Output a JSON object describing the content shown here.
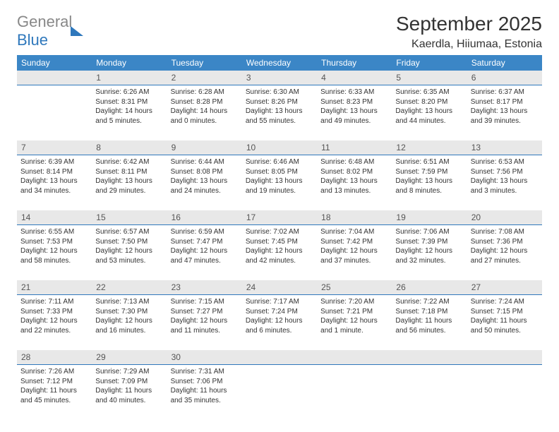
{
  "logo": {
    "word1": "General",
    "word2": "Blue"
  },
  "title": "September 2025",
  "location": "Kaerdla, Hiiumaa, Estonia",
  "colors": {
    "header_bg": "#3b86c6",
    "header_text": "#ffffff",
    "daynum_bg": "#e8e8e8",
    "border": "#2f78bc",
    "text": "#333333",
    "logo_gray": "#888888",
    "logo_blue": "#2f78bc"
  },
  "daysOfWeek": [
    "Sunday",
    "Monday",
    "Tuesday",
    "Wednesday",
    "Thursday",
    "Friday",
    "Saturday"
  ],
  "weeks": [
    {
      "nums": [
        "",
        "1",
        "2",
        "3",
        "4",
        "5",
        "6"
      ],
      "cells": [
        {
          "sunrise": "",
          "sunset": "",
          "daylight1": "",
          "daylight2": ""
        },
        {
          "sunrise": "Sunrise: 6:26 AM",
          "sunset": "Sunset: 8:31 PM",
          "daylight1": "Daylight: 14 hours",
          "daylight2": "and 5 minutes."
        },
        {
          "sunrise": "Sunrise: 6:28 AM",
          "sunset": "Sunset: 8:28 PM",
          "daylight1": "Daylight: 14 hours",
          "daylight2": "and 0 minutes."
        },
        {
          "sunrise": "Sunrise: 6:30 AM",
          "sunset": "Sunset: 8:26 PM",
          "daylight1": "Daylight: 13 hours",
          "daylight2": "and 55 minutes."
        },
        {
          "sunrise": "Sunrise: 6:33 AM",
          "sunset": "Sunset: 8:23 PM",
          "daylight1": "Daylight: 13 hours",
          "daylight2": "and 49 minutes."
        },
        {
          "sunrise": "Sunrise: 6:35 AM",
          "sunset": "Sunset: 8:20 PM",
          "daylight1": "Daylight: 13 hours",
          "daylight2": "and 44 minutes."
        },
        {
          "sunrise": "Sunrise: 6:37 AM",
          "sunset": "Sunset: 8:17 PM",
          "daylight1": "Daylight: 13 hours",
          "daylight2": "and 39 minutes."
        }
      ]
    },
    {
      "nums": [
        "7",
        "8",
        "9",
        "10",
        "11",
        "12",
        "13"
      ],
      "cells": [
        {
          "sunrise": "Sunrise: 6:39 AM",
          "sunset": "Sunset: 8:14 PM",
          "daylight1": "Daylight: 13 hours",
          "daylight2": "and 34 minutes."
        },
        {
          "sunrise": "Sunrise: 6:42 AM",
          "sunset": "Sunset: 8:11 PM",
          "daylight1": "Daylight: 13 hours",
          "daylight2": "and 29 minutes."
        },
        {
          "sunrise": "Sunrise: 6:44 AM",
          "sunset": "Sunset: 8:08 PM",
          "daylight1": "Daylight: 13 hours",
          "daylight2": "and 24 minutes."
        },
        {
          "sunrise": "Sunrise: 6:46 AM",
          "sunset": "Sunset: 8:05 PM",
          "daylight1": "Daylight: 13 hours",
          "daylight2": "and 19 minutes."
        },
        {
          "sunrise": "Sunrise: 6:48 AM",
          "sunset": "Sunset: 8:02 PM",
          "daylight1": "Daylight: 13 hours",
          "daylight2": "and 13 minutes."
        },
        {
          "sunrise": "Sunrise: 6:51 AM",
          "sunset": "Sunset: 7:59 PM",
          "daylight1": "Daylight: 13 hours",
          "daylight2": "and 8 minutes."
        },
        {
          "sunrise": "Sunrise: 6:53 AM",
          "sunset": "Sunset: 7:56 PM",
          "daylight1": "Daylight: 13 hours",
          "daylight2": "and 3 minutes."
        }
      ]
    },
    {
      "nums": [
        "14",
        "15",
        "16",
        "17",
        "18",
        "19",
        "20"
      ],
      "cells": [
        {
          "sunrise": "Sunrise: 6:55 AM",
          "sunset": "Sunset: 7:53 PM",
          "daylight1": "Daylight: 12 hours",
          "daylight2": "and 58 minutes."
        },
        {
          "sunrise": "Sunrise: 6:57 AM",
          "sunset": "Sunset: 7:50 PM",
          "daylight1": "Daylight: 12 hours",
          "daylight2": "and 53 minutes."
        },
        {
          "sunrise": "Sunrise: 6:59 AM",
          "sunset": "Sunset: 7:47 PM",
          "daylight1": "Daylight: 12 hours",
          "daylight2": "and 47 minutes."
        },
        {
          "sunrise": "Sunrise: 7:02 AM",
          "sunset": "Sunset: 7:45 PM",
          "daylight1": "Daylight: 12 hours",
          "daylight2": "and 42 minutes."
        },
        {
          "sunrise": "Sunrise: 7:04 AM",
          "sunset": "Sunset: 7:42 PM",
          "daylight1": "Daylight: 12 hours",
          "daylight2": "and 37 minutes."
        },
        {
          "sunrise": "Sunrise: 7:06 AM",
          "sunset": "Sunset: 7:39 PM",
          "daylight1": "Daylight: 12 hours",
          "daylight2": "and 32 minutes."
        },
        {
          "sunrise": "Sunrise: 7:08 AM",
          "sunset": "Sunset: 7:36 PM",
          "daylight1": "Daylight: 12 hours",
          "daylight2": "and 27 minutes."
        }
      ]
    },
    {
      "nums": [
        "21",
        "22",
        "23",
        "24",
        "25",
        "26",
        "27"
      ],
      "cells": [
        {
          "sunrise": "Sunrise: 7:11 AM",
          "sunset": "Sunset: 7:33 PM",
          "daylight1": "Daylight: 12 hours",
          "daylight2": "and 22 minutes."
        },
        {
          "sunrise": "Sunrise: 7:13 AM",
          "sunset": "Sunset: 7:30 PM",
          "daylight1": "Daylight: 12 hours",
          "daylight2": "and 16 minutes."
        },
        {
          "sunrise": "Sunrise: 7:15 AM",
          "sunset": "Sunset: 7:27 PM",
          "daylight1": "Daylight: 12 hours",
          "daylight2": "and 11 minutes."
        },
        {
          "sunrise": "Sunrise: 7:17 AM",
          "sunset": "Sunset: 7:24 PM",
          "daylight1": "Daylight: 12 hours",
          "daylight2": "and 6 minutes."
        },
        {
          "sunrise": "Sunrise: 7:20 AM",
          "sunset": "Sunset: 7:21 PM",
          "daylight1": "Daylight: 12 hours",
          "daylight2": "and 1 minute."
        },
        {
          "sunrise": "Sunrise: 7:22 AM",
          "sunset": "Sunset: 7:18 PM",
          "daylight1": "Daylight: 11 hours",
          "daylight2": "and 56 minutes."
        },
        {
          "sunrise": "Sunrise: 7:24 AM",
          "sunset": "Sunset: 7:15 PM",
          "daylight1": "Daylight: 11 hours",
          "daylight2": "and 50 minutes."
        }
      ]
    },
    {
      "nums": [
        "28",
        "29",
        "30",
        "",
        "",
        "",
        ""
      ],
      "cells": [
        {
          "sunrise": "Sunrise: 7:26 AM",
          "sunset": "Sunset: 7:12 PM",
          "daylight1": "Daylight: 11 hours",
          "daylight2": "and 45 minutes."
        },
        {
          "sunrise": "Sunrise: 7:29 AM",
          "sunset": "Sunset: 7:09 PM",
          "daylight1": "Daylight: 11 hours",
          "daylight2": "and 40 minutes."
        },
        {
          "sunrise": "Sunrise: 7:31 AM",
          "sunset": "Sunset: 7:06 PM",
          "daylight1": "Daylight: 11 hours",
          "daylight2": "and 35 minutes."
        },
        {
          "sunrise": "",
          "sunset": "",
          "daylight1": "",
          "daylight2": ""
        },
        {
          "sunrise": "",
          "sunset": "",
          "daylight1": "",
          "daylight2": ""
        },
        {
          "sunrise": "",
          "sunset": "",
          "daylight1": "",
          "daylight2": ""
        },
        {
          "sunrise": "",
          "sunset": "",
          "daylight1": "",
          "daylight2": ""
        }
      ]
    }
  ]
}
